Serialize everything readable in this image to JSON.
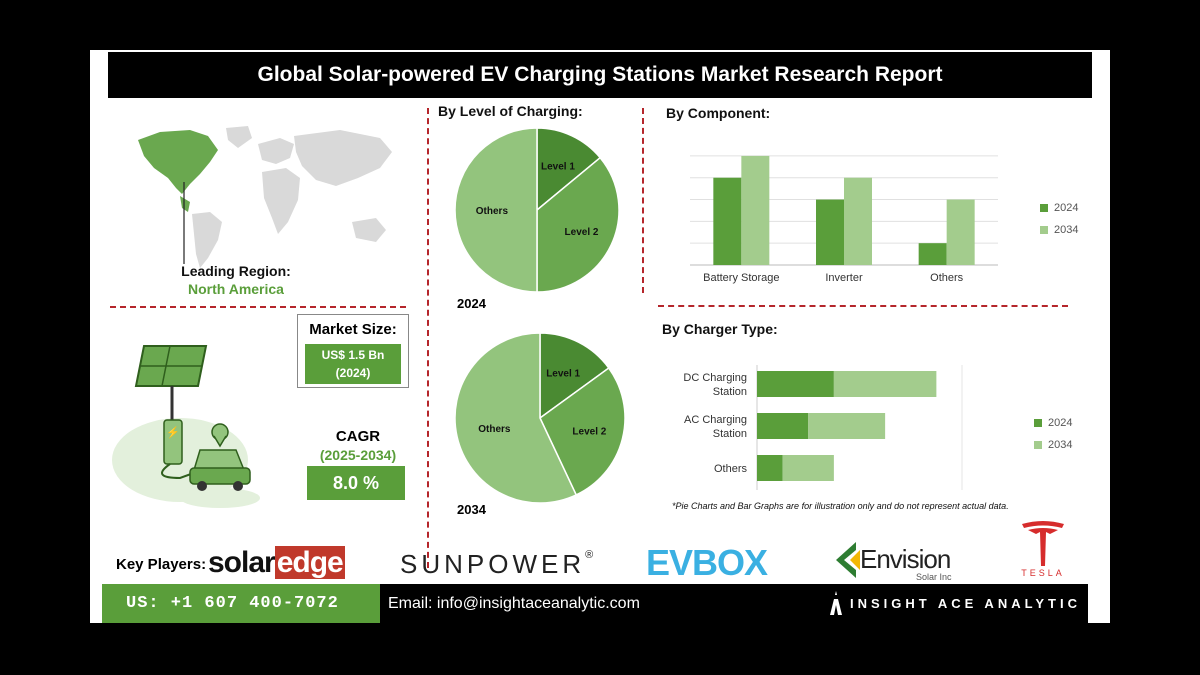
{
  "title": "Global Solar-powered EV Charging Stations Market Research Report",
  "region": {
    "label": "Leading Region:",
    "value": "North America"
  },
  "market_size": {
    "label": "Market Size:",
    "value_line1": "US$ 1.5 Bn",
    "value_line2": "(2024)"
  },
  "cagr": {
    "label": "CAGR",
    "period": "(2025-2034)",
    "value": "8.0 %"
  },
  "level_section": {
    "title": "By Level of Charging:",
    "year1": "2024",
    "year2": "2034"
  },
  "component_section": {
    "title": "By  Component:"
  },
  "charger_section": {
    "title": "By Charger Type:"
  },
  "disclaimer": "*Pie Charts and Bar Graphs are for illustration only and do not represent actual data.",
  "key_players": {
    "label": "Key Players:",
    "solaredge_a": "solar",
    "solaredge_b": "edge",
    "sunpower": "SUNPOWER",
    "sunpower_mark": "®",
    "evbox": "EVBOX",
    "envision": "Envision",
    "envision_sub": "Solar Inc",
    "tesla": "TESLA"
  },
  "footer": {
    "phone": "US: +1 607 400-7072",
    "email": "Email: info@insightaceanalytic.com",
    "brand": "INSIGHT ACE ANALYTIC"
  },
  "colors": {
    "dark_green": "#5a9e3a",
    "light_green": "#a3cc8d",
    "pie_dark": "#4a8a32",
    "pie_mid": "#6aa84f",
    "pie_light": "#93c47d",
    "accent_red": "#b5262b"
  },
  "chart_data": [
    {
      "type": "pie",
      "title": "2024",
      "labels": [
        "Level 1",
        "Level 2",
        "Others"
      ],
      "values": [
        14,
        36,
        50
      ]
    },
    {
      "type": "pie",
      "title": "2034",
      "labels": [
        "Level 1",
        "Level 2",
        "Others"
      ],
      "values": [
        15,
        28,
        57
      ]
    },
    {
      "type": "bar",
      "title": "By  Component:",
      "categories": [
        "Battery Storage",
        "Inverter",
        "Others"
      ],
      "series": [
        {
          "name": "2024",
          "values": [
            4,
            3,
            1
          ]
        },
        {
          "name": "2034",
          "values": [
            5,
            4,
            3
          ]
        }
      ],
      "ylim": [
        0,
        5.5
      ],
      "grid": true,
      "legend": "right"
    },
    {
      "type": "bar",
      "orientation": "horizontal",
      "stacked": true,
      "title": "By Charger Type:",
      "categories": [
        "DC Charging Station",
        "AC Charging Station",
        "Others"
      ],
      "series": [
        {
          "name": "2024",
          "values": [
            3,
            2,
            1
          ]
        },
        {
          "name": "2034",
          "values": [
            4,
            3,
            2
          ]
        }
      ],
      "xlim": [
        0,
        8
      ],
      "legend": "right"
    }
  ]
}
